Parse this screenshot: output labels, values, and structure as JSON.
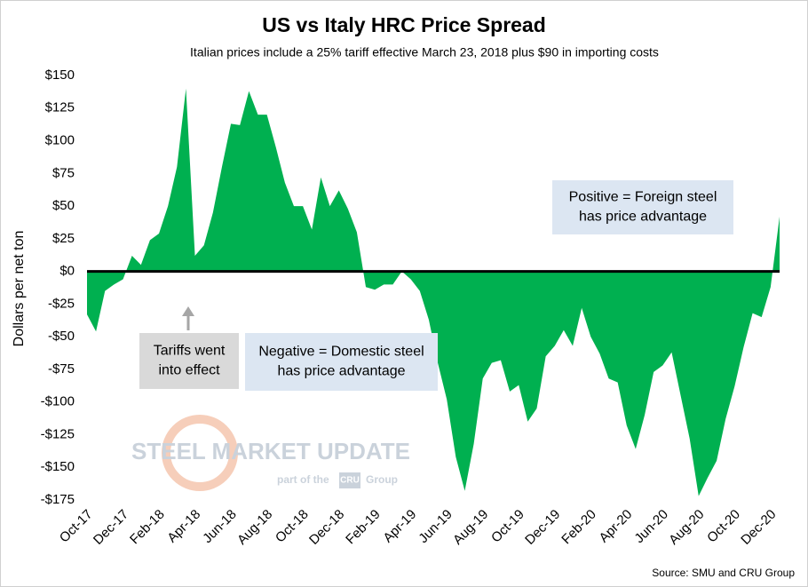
{
  "chart_data": {
    "type": "area",
    "title": "US vs Italy HRC Price Spread",
    "subtitle": "Italian prices include a 25% tariff effective March 23, 2018 plus $90 in importing costs",
    "y_label": "Dollars per net ton",
    "source": "Source: SMU and CRU Group",
    "watermark": {
      "name": "STEEL MARKET UPDATE",
      "tagline": "part of the",
      "brand": "CRU",
      "group": "Group"
    },
    "color": "#00b050",
    "grid": false,
    "annotations": [
      {
        "lines": [
          "Tariffs went",
          "into effect"
        ],
        "color": "#d9d9d9"
      },
      {
        "lines": [
          "Negative = Domestic steel",
          "has price advantage"
        ],
        "color": "#dce6f2"
      },
      {
        "lines": [
          "Positive = Foreign steel",
          "has price advantage"
        ],
        "color": "#dce6f2"
      }
    ],
    "categories": [
      "Oct-17",
      null,
      null,
      null,
      "Dec-17",
      null,
      null,
      null,
      "Feb-18",
      null,
      null,
      null,
      "Apr-18",
      null,
      null,
      null,
      "Jun-18",
      null,
      null,
      null,
      "Aug-18",
      null,
      null,
      null,
      "Oct-18",
      null,
      null,
      null,
      "Dec-18",
      null,
      null,
      null,
      "Feb-19",
      null,
      null,
      null,
      "Apr-19",
      null,
      null,
      null,
      "Jun-19",
      null,
      null,
      null,
      "Aug-19",
      null,
      null,
      null,
      "Oct-19",
      null,
      null,
      null,
      "Dec-19",
      null,
      null,
      null,
      "Feb-20",
      null,
      null,
      null,
      "Apr-20",
      null,
      null,
      null,
      "Jun-20",
      null,
      null,
      null,
      "Aug-20",
      null,
      null,
      null,
      "Oct-20",
      null,
      null,
      null,
      "Dec-20",
      null
    ],
    "values": [
      -33,
      -46,
      -15,
      -10,
      -6,
      12,
      5,
      24,
      29,
      50,
      80,
      140,
      12,
      20,
      45,
      80,
      113,
      112,
      138,
      120,
      120,
      95,
      68,
      50,
      50,
      32,
      72,
      50,
      62,
      48,
      30,
      -12,
      -14,
      -10,
      -10,
      0,
      -6,
      -15,
      -37,
      -70,
      -98,
      -142,
      -168,
      -132,
      -82,
      -70,
      -68,
      -92,
      -87,
      -115,
      -105,
      -65,
      -57,
      -45,
      -57,
      -28,
      -50,
      -63,
      -82,
      -85,
      -118,
      -136,
      -110,
      -77,
      -72,
      -62,
      -95,
      -128,
      -172,
      -158,
      -145,
      -113,
      -88,
      -58,
      -32,
      -35,
      -12,
      42
    ],
    "ylim": [
      -175,
      150
    ],
    "yticks": [
      {
        "value": -175,
        "label": "-$175"
      },
      {
        "value": -150,
        "label": "-$150"
      },
      {
        "value": -125,
        "label": "-$125"
      },
      {
        "value": -100,
        "label": "-$100"
      },
      {
        "value": -75,
        "label": "-$75"
      },
      {
        "value": -50,
        "label": "-$50"
      },
      {
        "value": -25,
        "label": "-$25"
      },
      {
        "value": 0,
        "label": "$0"
      },
      {
        "value": 25,
        "label": "$25"
      },
      {
        "value": 50,
        "label": "$50"
      },
      {
        "value": 75,
        "label": "$75"
      },
      {
        "value": 100,
        "label": "$100"
      },
      {
        "value": 125,
        "label": "$125"
      },
      {
        "value": 150,
        "label": "$150"
      }
    ]
  }
}
